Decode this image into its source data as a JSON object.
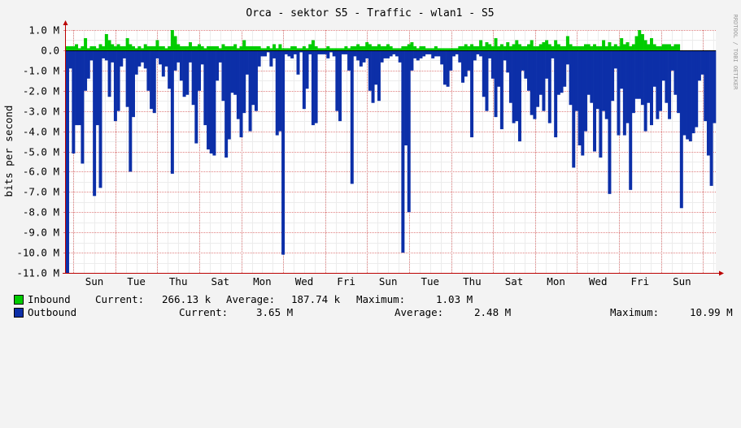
{
  "chart_data": {
    "type": "area",
    "title": "Orca - sektor S5 - Traffic - wlan1 - S5",
    "ylabel": "bits per second",
    "watermark": "RRDTOOL / TOBI OETIKER",
    "ylim": [
      -11000000,
      1000000
    ],
    "y_ticks": [
      {
        "value": 1000000,
        "label": "1.0 M"
      },
      {
        "value": 0,
        "label": "0.0"
      },
      {
        "value": -1000000,
        "label": "-1.0 M"
      },
      {
        "value": -2000000,
        "label": "-2.0 M"
      },
      {
        "value": -3000000,
        "label": "-3.0 M"
      },
      {
        "value": -4000000,
        "label": "-4.0 M"
      },
      {
        "value": -5000000,
        "label": "-5.0 M"
      },
      {
        "value": -6000000,
        "label": "-6.0 M"
      },
      {
        "value": -7000000,
        "label": "-7.0 M"
      },
      {
        "value": -8000000,
        "label": "-8.0 M"
      },
      {
        "value": -9000000,
        "label": "-9.0 M"
      },
      {
        "value": -10000000,
        "label": "-10.0 M"
      },
      {
        "value": -11000000,
        "label": "-11.0 M"
      }
    ],
    "x_labels": [
      "Sun",
      "Tue",
      "Thu",
      "Sat",
      "Mon",
      "Wed",
      "Fri",
      "Sun",
      "Tue",
      "Thu",
      "Sat",
      "Mon",
      "Wed",
      "Fri",
      "Sun"
    ],
    "grid": true,
    "colors": {
      "inbound": "#00cc00",
      "inbound_edge": "#009900",
      "outbound": "#0c2fa8",
      "outbound_edge": "#002a97",
      "grid": "#e08080",
      "axis": "#bb0000",
      "background": "#f3f3f3",
      "plot_bg": "#ffffff"
    },
    "series": [
      {
        "name": "Inbound",
        "values": [
          0.2,
          0.2,
          0.2,
          0.3,
          0.1,
          0.2,
          0.6,
          0.1,
          0.2,
          0.2,
          0.1,
          0.3,
          0.2,
          0.8,
          0.5,
          0.3,
          0.2,
          0.3,
          0.2,
          0.2,
          0.6,
          0.3,
          0.2,
          0.1,
          0.2,
          0.1,
          0.3,
          0.2,
          0.2,
          0.2,
          0.5,
          0.2,
          0.2,
          0.1,
          0.2,
          1.0,
          0.7,
          0.3,
          0.2,
          0.2,
          0.2,
          0.4,
          0.2,
          0.2,
          0.3,
          0.2,
          0.1,
          0.2,
          0.2,
          0.2,
          0.2,
          0.1,
          0.3,
          0.2,
          0.2,
          0.2,
          0.3,
          0.1,
          0.2,
          0.5,
          0.2,
          0.2,
          0.2,
          0.2,
          0.2,
          0.1,
          0.1,
          0.2,
          0.1,
          0.3,
          0.1,
          0.3,
          0.1,
          0.1,
          0.1,
          0.2,
          0.2,
          0.1,
          0.1,
          0.2,
          0.1,
          0.3,
          0.5,
          0.2,
          0.1,
          0.1,
          0.1,
          0.2,
          0.1,
          0.1,
          0.1,
          0.1,
          0.1,
          0.2,
          0.1,
          0.2,
          0.2,
          0.3,
          0.2,
          0.2,
          0.4,
          0.3,
          0.2,
          0.2,
          0.3,
          0.2,
          0.2,
          0.3,
          0.2,
          0.1,
          0.1,
          0.1,
          0.2,
          0.2,
          0.3,
          0.4,
          0.2,
          0.1,
          0.2,
          0.2,
          0.1,
          0.1,
          0.1,
          0.2,
          0.1,
          0.1,
          0.1,
          0.1,
          0.1,
          0.1,
          0.1,
          0.2,
          0.2,
          0.3,
          0.2,
          0.3,
          0.2,
          0.2,
          0.5,
          0.2,
          0.4,
          0.3,
          0.2,
          0.6,
          0.2,
          0.3,
          0.2,
          0.4,
          0.2,
          0.3,
          0.5,
          0.3,
          0.2,
          0.2,
          0.3,
          0.5,
          0.2,
          0.2,
          0.3,
          0.4,
          0.5,
          0.3,
          0.2,
          0.5,
          0.3,
          0.2,
          0.2,
          0.7,
          0.3,
          0.2,
          0.2,
          0.2,
          0.2,
          0.3,
          0.3,
          0.2,
          0.3,
          0.2,
          0.2,
          0.5,
          0.2,
          0.4,
          0.2,
          0.3,
          0.2,
          0.6,
          0.3,
          0.4,
          0.2,
          0.3,
          0.7,
          1.0,
          0.8,
          0.5,
          0.3,
          0.6,
          0.3,
          0.2,
          0.2,
          0.3,
          0.3,
          0.3,
          0.2,
          0.3,
          0.3
        ]
      },
      {
        "name": "Outbound",
        "values": [
          -11.0,
          -0.9,
          -5.1,
          -3.7,
          -3.7,
          -5.6,
          -2.0,
          -1.4,
          -0.5,
          -7.2,
          -3.7,
          -6.8,
          -0.4,
          -0.5,
          -2.3,
          -0.6,
          -3.5,
          -3.0,
          -0.8,
          -0.4,
          -2.8,
          -6.0,
          -3.3,
          -1.2,
          -0.8,
          -0.6,
          -0.9,
          -2.0,
          -2.9,
          -3.1,
          -0.4,
          -0.7,
          -1.3,
          -0.8,
          -1.9,
          -6.1,
          -1.0,
          -0.6,
          -1.5,
          -2.3,
          -2.2,
          -0.6,
          -2.7,
          -4.6,
          -2.0,
          -0.7,
          -3.7,
          -4.9,
          -5.1,
          -5.2,
          -1.5,
          -0.6,
          -2.5,
          -5.3,
          -4.4,
          -2.1,
          -2.2,
          -3.4,
          -4.3,
          -3.1,
          -1.2,
          -4.0,
          -2.7,
          -3.0,
          -0.8,
          -0.3,
          -0.3,
          -0.1,
          -0.8,
          -0.4,
          -4.2,
          -4.0,
          -10.1,
          -0.2,
          -0.3,
          -0.4,
          -0.2,
          -1.2,
          -0.1,
          -2.9,
          -1.9,
          -0.2,
          -3.7,
          -3.6,
          -0.2,
          -0.2,
          -0.2,
          -0.4,
          -0.1,
          -0.3,
          -3.0,
          -3.5,
          -0.2,
          -0.2,
          -1.0,
          -6.6,
          -0.3,
          -0.5,
          -0.8,
          -0.6,
          -0.4,
          -2.0,
          -2.6,
          -1.7,
          -2.5,
          -0.6,
          -0.4,
          -0.4,
          -0.3,
          -0.2,
          -0.3,
          -0.6,
          -10.0,
          -4.7,
          -8.0,
          -1.0,
          -0.4,
          -0.5,
          -0.4,
          -0.3,
          -0.2,
          -0.2,
          -0.4,
          -0.3,
          -0.3,
          -0.7,
          -1.7,
          -1.8,
          -1.0,
          -0.3,
          -0.2,
          -0.6,
          -1.6,
          -1.3,
          -1.0,
          -4.3,
          -0.5,
          -0.2,
          -0.3,
          -2.3,
          -3.0,
          -0.4,
          -1.4,
          -3.3,
          -1.8,
          -3.9,
          -0.5,
          -1.1,
          -2.6,
          -3.6,
          -3.5,
          -4.5,
          -1.0,
          -1.4,
          -2.0,
          -3.2,
          -3.4,
          -2.8,
          -2.2,
          -3.0,
          -1.4,
          -3.6,
          -0.4,
          -4.3,
          -2.2,
          -2.1,
          -1.8,
          -0.7,
          -2.7,
          -5.8,
          -3.0,
          -4.7,
          -5.2,
          -4.0,
          -2.2,
          -2.6,
          -5.0,
          -2.9,
          -5.3,
          -3.0,
          -3.4,
          -7.1,
          -2.5,
          -0.9,
          -4.2,
          -1.9,
          -4.2,
          -3.6,
          -6.9,
          -3.1,
          -2.4,
          -2.4,
          -2.7,
          -4.0,
          -2.6,
          -3.7,
          -1.8,
          -3.4,
          -3.0,
          -1.5,
          -2.6,
          -3.4,
          -1.0,
          -2.2,
          -3.1,
          -7.8,
          -4.2,
          -4.4,
          -4.5,
          -4.1,
          -3.8,
          -1.5,
          -1.2,
          -3.5,
          -5.2,
          -6.7,
          -3.6
        ]
      }
    ]
  },
  "legend": {
    "inbound": {
      "label": "Inbound",
      "current_label": "Current:",
      "current_value": "266.13 k",
      "average_label": "Average:",
      "average_value": "187.74 k",
      "maximum_label": "Maximum:",
      "maximum_value": "1.03 M"
    },
    "outbound": {
      "label": "Outbound",
      "current_label": "Current:",
      "current_value": "3.65 M",
      "average_label": "Average:",
      "average_value": "2.48 M",
      "maximum_label": "Maximum:",
      "maximum_value": "10.99 M"
    }
  }
}
